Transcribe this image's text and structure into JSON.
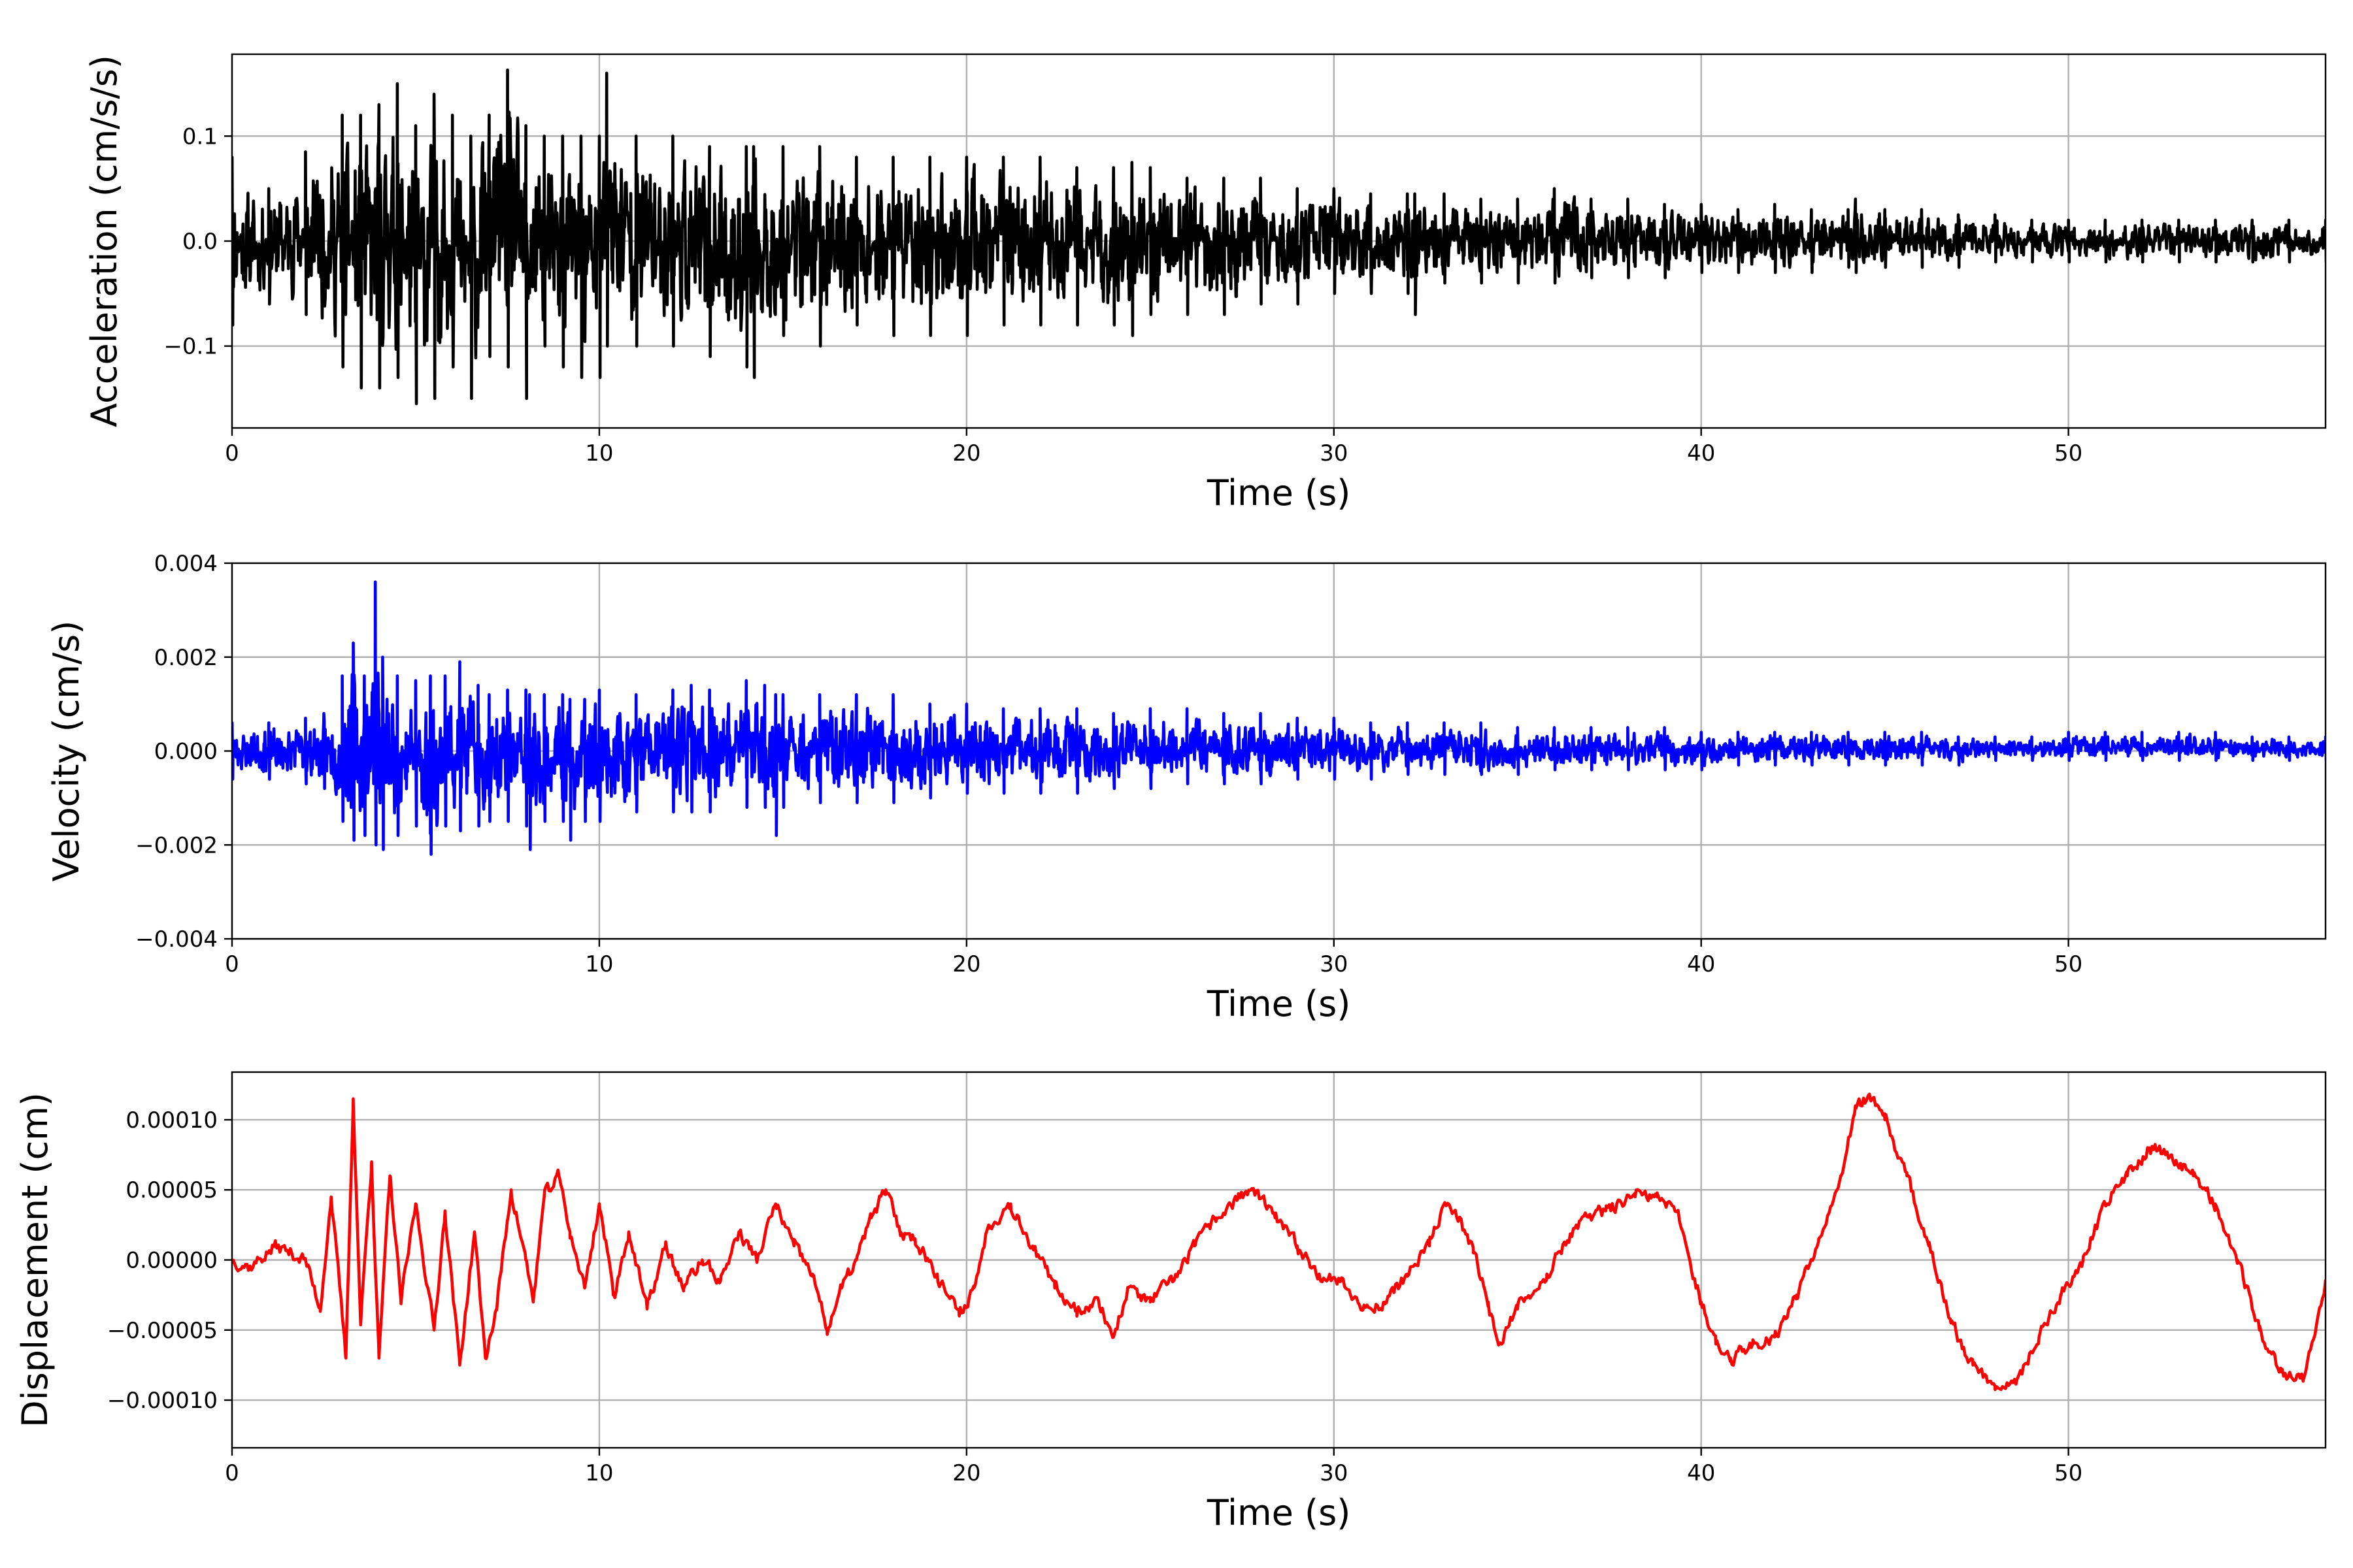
{
  "chart_data": [
    {
      "type": "line",
      "xlabel": "Time (s)",
      "ylabel": "Acceleration (cm/s/s)",
      "xlim": [
        0,
        57
      ],
      "ylim": [
        -0.178,
        0.178
      ],
      "xticks": [
        0,
        10,
        20,
        30,
        40,
        50
      ],
      "yticks": [
        -0.1,
        0.0,
        0.1
      ],
      "xtick_labels": [
        "0",
        "10",
        "20",
        "30",
        "40",
        "50"
      ],
      "ytick_labels": [
        "−0.1",
        "0.0",
        "0.1"
      ],
      "grid": true,
      "series": [
        {
          "color": "#000000",
          "x": [
            0,
            1,
            2,
            3,
            3.5,
            4,
            4.5,
            5,
            5.5,
            6,
            6.5,
            7,
            7.5,
            8,
            8.5,
            9,
            9.5,
            10,
            10.2,
            11,
            12,
            13,
            14,
            14.2,
            15,
            16,
            17,
            18,
            19,
            20,
            21,
            22,
            23,
            24,
            24.5,
            25,
            26,
            27,
            28,
            29,
            30,
            31,
            32,
            32.2,
            33,
            34,
            35,
            36,
            37,
            38,
            39,
            40,
            41,
            42,
            43,
            44,
            44.2,
            45,
            46,
            47,
            48,
            49,
            50,
            51,
            52,
            53,
            54,
            55,
            56,
            57
          ],
          "min": [
            -0.08,
            -0.06,
            -0.07,
            -0.12,
            -0.14,
            -0.14,
            -0.13,
            -0.155,
            -0.15,
            -0.12,
            -0.15,
            -0.11,
            -0.12,
            -0.15,
            -0.1,
            -0.12,
            -0.13,
            -0.13,
            -0.1,
            -0.1,
            -0.1,
            -0.11,
            -0.12,
            -0.13,
            -0.09,
            -0.1,
            -0.08,
            -0.09,
            -0.09,
            -0.09,
            -0.08,
            -0.08,
            -0.08,
            -0.08,
            -0.09,
            -0.07,
            -0.07,
            -0.07,
            -0.06,
            -0.06,
            -0.05,
            -0.05,
            -0.05,
            -0.07,
            -0.04,
            -0.04,
            -0.04,
            -0.04,
            -0.035,
            -0.035,
            -0.035,
            -0.03,
            -0.03,
            -0.03,
            -0.03,
            -0.025,
            -0.03,
            -0.025,
            -0.025,
            -0.025,
            -0.02,
            -0.02,
            -0.02,
            -0.02,
            -0.02,
            -0.02,
            -0.02,
            -0.02,
            -0.02,
            -0.02
          ],
          "max": [
            0.08,
            0.05,
            0.085,
            0.12,
            0.12,
            0.13,
            0.15,
            0.11,
            0.14,
            0.12,
            0.1,
            0.12,
            0.163,
            0.11,
            0.1,
            0.1,
            0.1,
            0.1,
            0.16,
            0.1,
            0.1,
            0.09,
            0.09,
            0.09,
            0.09,
            0.09,
            0.08,
            0.08,
            0.08,
            0.08,
            0.08,
            0.08,
            0.07,
            0.07,
            0.075,
            0.07,
            0.06,
            0.06,
            0.06,
            0.05,
            0.05,
            0.045,
            0.045,
            0.045,
            0.045,
            0.04,
            0.04,
            0.05,
            0.04,
            0.04,
            0.035,
            0.035,
            0.03,
            0.035,
            0.03,
            0.03,
            0.04,
            0.03,
            0.03,
            0.025,
            0.025,
            0.02,
            0.02,
            0.02,
            0.02,
            0.02,
            0.02,
            0.02,
            0.02,
            0.02
          ],
          "seed": 11
        }
      ]
    },
    {
      "type": "line",
      "xlabel": "Time (s)",
      "ylabel": "Velocity (cm/s)",
      "xlim": [
        0,
        57
      ],
      "ylim": [
        -0.004,
        0.004
      ],
      "xticks": [
        0,
        10,
        20,
        30,
        40,
        50
      ],
      "yticks": [
        -0.004,
        -0.002,
        0.0,
        0.002,
        0.004
      ],
      "xtick_labels": [
        "0",
        "10",
        "20",
        "30",
        "40",
        "50"
      ],
      "ytick_labels": [
        "−0.004",
        "−0.002",
        "0.000",
        "0.002",
        "0.004"
      ],
      "grid": true,
      "series": [
        {
          "color": "#0000ff",
          "x": [
            0,
            1,
            2,
            2.5,
            3,
            3.3,
            3.6,
            3.9,
            4.1,
            4.5,
            5,
            5.4,
            5.8,
            6.2,
            6.7,
            7,
            7.5,
            8,
            8.1,
            8.5,
            9,
            9.2,
            9.6,
            10,
            11,
            12,
            12.5,
            13,
            14,
            14.5,
            14.8,
            15,
            16,
            17,
            18,
            19,
            20,
            21,
            22,
            23,
            24,
            25,
            26,
            27,
            28,
            29,
            30,
            31,
            32,
            33,
            34,
            35,
            36,
            37,
            38,
            39,
            40,
            41,
            42,
            43,
            44,
            45,
            46,
            47,
            48,
            49,
            50,
            51,
            52,
            53,
            54,
            55,
            56,
            57
          ],
          "min": [
            -0.0006,
            -0.0006,
            -0.0007,
            -0.0008,
            -0.0015,
            -0.0019,
            -0.0018,
            -0.002,
            -0.0021,
            -0.0018,
            -0.0016,
            -0.0022,
            -0.0016,
            -0.0017,
            -0.0016,
            -0.0015,
            -0.0015,
            -0.0016,
            -0.0021,
            -0.0015,
            -0.0015,
            -0.0019,
            -0.0015,
            -0.0015,
            -0.0013,
            -0.0013,
            -0.0013,
            -0.0013,
            -0.0012,
            -0.0012,
            -0.0018,
            -0.0012,
            -0.0011,
            -0.0011,
            -0.0011,
            -0.001,
            -0.0009,
            -0.0009,
            -0.0009,
            -0.0009,
            -0.0008,
            -0.0008,
            -0.0007,
            -0.0007,
            -0.0007,
            -0.0006,
            -0.0006,
            -0.0006,
            -0.0005,
            -0.0005,
            -0.0005,
            -0.0005,
            -0.0004,
            -0.0004,
            -0.0004,
            -0.0004,
            -0.0004,
            -0.0003,
            -0.0003,
            -0.0003,
            -0.0003,
            -0.0003,
            -0.0003,
            -0.0003,
            -0.0002,
            -0.0002,
            -0.0002,
            -0.0002,
            -0.0002,
            -0.0002,
            -0.0002,
            -0.0002,
            -0.0002,
            -0.0002
          ],
          "max": [
            0.0006,
            0.0006,
            0.0007,
            0.0008,
            0.0016,
            0.0023,
            0.0016,
            0.0036,
            0.002,
            0.0016,
            0.0015,
            0.0016,
            0.0016,
            0.0019,
            0.0014,
            0.0012,
            0.0013,
            0.0013,
            0.0012,
            0.0012,
            0.0012,
            0.0011,
            0.0011,
            0.0013,
            0.0012,
            0.0013,
            0.0014,
            0.0013,
            0.0015,
            0.0014,
            0.0012,
            0.0012,
            0.0012,
            0.0012,
            0.0012,
            0.001,
            0.001,
            0.0009,
            0.0009,
            0.0009,
            0.0008,
            0.0009,
            0.0009,
            0.0008,
            0.0008,
            0.0007,
            0.0007,
            0.0006,
            0.0006,
            0.0006,
            0.0006,
            0.0005,
            0.0005,
            0.0005,
            0.0005,
            0.0005,
            0.0004,
            0.0004,
            0.0004,
            0.0004,
            0.0004,
            0.0004,
            0.0004,
            0.0003,
            0.0003,
            0.0003,
            0.0004,
            0.0004,
            0.0004,
            0.0004,
            0.0004,
            0.0003,
            0.0003,
            0.0003
          ],
          "seed": 23
        }
      ]
    },
    {
      "type": "line",
      "xlabel": "Time (s)",
      "ylabel": "Displacement (cm)",
      "xlim": [
        0,
        57
      ],
      "ylim": [
        -0.000134,
        0.000134
      ],
      "xticks": [
        0,
        10,
        20,
        30,
        40,
        50
      ],
      "yticks": [
        -0.0001,
        -5e-05,
        0.0,
        5e-05,
        0.0001
      ],
      "xtick_labels": [
        "0",
        "10",
        "20",
        "30",
        "40",
        "50"
      ],
      "ytick_labels": [
        "−0.00010",
        "−0.00005",
        "0.00000",
        "0.00005",
        "0.00010"
      ],
      "grid": true,
      "series": [
        {
          "color": "#ff0000",
          "x": [
            0,
            0.5,
            1.2,
            2,
            2.4,
            2.7,
            3.0,
            3.1,
            3.3,
            3.5,
            3.8,
            4.0,
            4.3,
            4.6,
            5.0,
            5.5,
            5.8,
            6.2,
            6.6,
            6.9,
            7.2,
            7.6,
            8.0,
            8.2,
            8.5,
            8.9,
            9.2,
            9.6,
            10,
            10.4,
            10.8,
            11.3,
            11.8,
            12.3,
            12.8,
            13.3,
            13.8,
            14.3,
            14.8,
            15.3,
            15.8,
            16.2,
            16.6,
            17.0,
            17.4,
            17.8,
            18.2,
            18.6,
            19.2,
            19.8,
            20.2,
            20.6,
            21.2,
            21.8,
            22.4,
            23.0,
            23.6,
            24.0,
            24.4,
            25.0,
            25.6,
            26.2,
            26.8,
            27.4,
            27.8,
            28.4,
            29.0,
            29.6,
            30.2,
            30.8,
            31.4,
            32.0,
            32.6,
            33.0,
            33.4,
            33.8,
            34.2,
            34.5,
            35.0,
            35.8,
            36.6,
            37.4,
            38.2,
            38.8,
            39.4,
            40.0,
            40.4,
            40.8,
            41.4,
            42.0,
            42.6,
            43.2,
            43.8,
            44.2,
            44.6,
            45.0,
            45.6,
            46.2,
            46.8,
            47.4,
            48.0,
            48.6,
            49.2,
            49.8,
            50.4,
            51.0,
            51.6,
            52.2,
            52.8,
            53.4,
            54.0,
            54.6,
            55.2,
            55.8,
            56.4,
            57.0
          ],
          "y": [
            0.0,
            -5e-06,
            1e-05,
            0.0,
            -3.5e-05,
            4.5e-05,
            -4e-05,
            -7e-05,
            0.000115,
            -4.5e-05,
            7e-05,
            -7e-05,
            6e-05,
            -3e-05,
            4e-05,
            -5e-05,
            3.5e-05,
            -7.5e-05,
            2e-05,
            -7e-05,
            -3.5e-05,
            5e-05,
            0.0,
            -3e-05,
            4.5e-05,
            6e-05,
            2e-05,
            -2e-05,
            4e-05,
            -2.5e-05,
            2e-05,
            -3.5e-05,
            1e-05,
            -2e-05,
            0.0,
            -1.5e-05,
            2e-05,
            0.0,
            4e-05,
            1e-05,
            -1e-05,
            -5e-05,
            -2e-05,
            0.0,
            3e-05,
            5e-05,
            2e-05,
            1.5e-05,
            -1e-05,
            -4e-05,
            -2e-05,
            2.5e-05,
            4e-05,
            1e-05,
            -2e-05,
            -3.5e-05,
            -3e-05,
            -5.5e-05,
            -2e-05,
            -3e-05,
            -1.5e-05,
            1e-05,
            3e-05,
            4.5e-05,
            5e-05,
            3e-05,
            1e-05,
            -1e-05,
            -1.5e-05,
            -3.5e-05,
            -3e-05,
            -1e-05,
            1e-05,
            4e-05,
            3e-05,
            5e-06,
            -3e-05,
            -6e-05,
            -3.5e-05,
            -1e-05,
            2.5e-05,
            3.5e-05,
            4.5e-05,
            4.5e-05,
            3e-05,
            -3e-05,
            -6e-05,
            -7e-05,
            -6e-05,
            -5.5e-05,
            -2.5e-05,
            1.5e-05,
            6e-05,
            0.00011,
            0.000115,
            0.0001,
            6e-05,
            1e-05,
            -4.5e-05,
            -7.5e-05,
            -9e-05,
            -8.5e-05,
            -5.5e-05,
            -2.5e-05,
            0.0,
            4e-05,
            6e-05,
            8e-05,
            7.5e-05,
            6e-05,
            4e-05,
            0.0,
            -5e-05,
            -8e-05,
            -8.5e-05,
            -1.5e-05
          ],
          "jitter": 8e-06,
          "seed": 37
        }
      ]
    }
  ]
}
